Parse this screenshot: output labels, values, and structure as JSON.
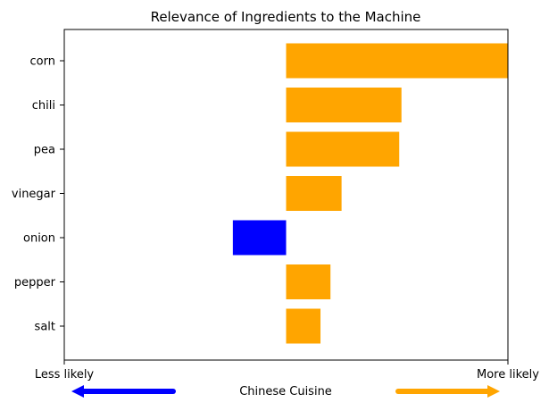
{
  "chart_data": {
    "type": "bar",
    "orientation": "horizontal",
    "title": "Relevance of Ingredients to the Machine",
    "categories": [
      "corn",
      "chili",
      "pea",
      "vinegar",
      "onion",
      "pepper",
      "salt"
    ],
    "values": [
      1.0,
      0.52,
      0.51,
      0.25,
      -0.24,
      0.2,
      0.155
    ],
    "xlim": [
      -1.0,
      1.0
    ],
    "grid": false,
    "positive_color": "#ffa500",
    "negative_color": "#0000ff",
    "xlabel": "Chinese Cuisine",
    "x_left_label": "Less likely",
    "x_right_label": "More likely"
  }
}
